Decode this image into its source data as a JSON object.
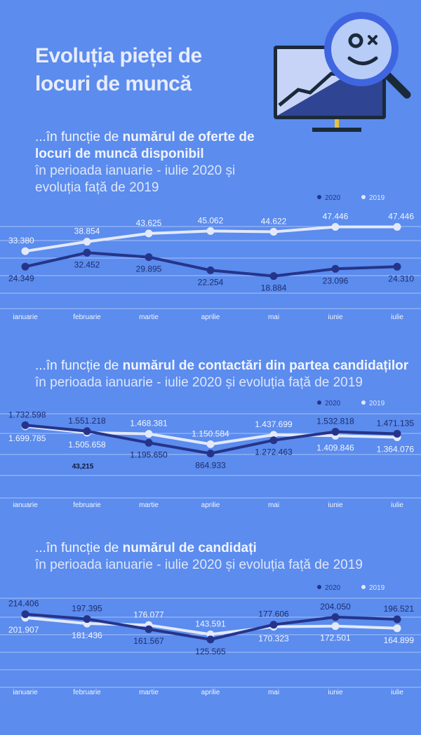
{
  "title": {
    "line1": "Evoluția pieței de",
    "line2": "locuri de muncă"
  },
  "colors": {
    "background": "#5b8cee",
    "series2020": "#25348a",
    "series2019": "#e3e9fb",
    "gridline": "#a9c2f6"
  },
  "illustration": {
    "icon": "magnifier-monitor-growth-icon"
  },
  "sections": [
    {
      "heading": {
        "prefix": "...în funcție de ",
        "bold1": "numărul de oferte de",
        "bold2": "locuri de muncă disponibil",
        "line3": "în perioada ianuarie - iulie 2020 și",
        "line4": "evoluția față de 2019"
      }
    },
    {
      "heading": {
        "prefix": "...în funcție de ",
        "bold1": "numărul de contactări din partea candidaților",
        "line2": "în perioada ianuarie - iulie 2020 și evoluția față de 2019"
      }
    },
    {
      "heading": {
        "prefix": "...în funcție de ",
        "bold1": "numărul de candidați",
        "line2": "în perioada ianuarie - iulie 2020 și evoluția față de 2019"
      }
    }
  ],
  "chart_data": [
    {
      "type": "line",
      "title": "numărul de oferte de locuri de muncă disponibil",
      "categories": [
        "ianuarie",
        "februarie",
        "martie",
        "aprilie",
        "mai",
        "iunie",
        "iulie"
      ],
      "series": [
        {
          "name": "2020",
          "values": [
            24349,
            32452,
            29895,
            22254,
            18884,
            23096,
            24310
          ],
          "labels": [
            "24.349",
            "32.452",
            "29.895",
            "22.254",
            "18.884",
            "23.096",
            "24.310"
          ]
        },
        {
          "name": "2019",
          "values": [
            33380,
            38854,
            43625,
            45062,
            44622,
            47446,
            47446
          ],
          "labels": [
            "33.380",
            "38.854",
            "43.625",
            "45.062",
            "44.622",
            "47.446",
            "47.446"
          ]
        }
      ],
      "ylim": [
        0,
        55000
      ],
      "legend": "top-right"
    },
    {
      "type": "line",
      "title": "numărul de contactări din partea candidaților",
      "categories": [
        "ianuarie",
        "februarie",
        "martie",
        "aprilie",
        "mai",
        "iunie",
        "iulie"
      ],
      "series": [
        {
          "name": "2020",
          "values": [
            1732598,
            1551218,
            1195650,
            864933,
            1272463,
            1532818,
            1471135
          ],
          "labels": [
            "1.732.598",
            "1.551.218",
            "1.195.650",
            "864.933",
            "1.272.463",
            "1.532.818",
            "1.471.135"
          ]
        },
        {
          "name": "2019",
          "values": [
            1699785,
            1505658,
            1468381,
            1150584,
            1437699,
            1409846,
            1364076
          ],
          "labels": [
            "1.699.785",
            "1.505.658",
            "1.468.381",
            "1.150.584",
            "1.437.699",
            "1.409.846",
            "1.364.076"
          ]
        }
      ],
      "extra_annotation": "43,215",
      "ylim": [
        -500000,
        2300000
      ],
      "legend": "top-right"
    },
    {
      "type": "line",
      "title": "numărul de candidați",
      "categories": [
        "ianuarie",
        "februarie",
        "martie",
        "aprilie",
        "mai",
        "iunie",
        "iulie"
      ],
      "series": [
        {
          "name": "2020",
          "values": [
            214406,
            197395,
            161567,
            125565,
            177606,
            204050,
            196521
          ],
          "labels": [
            "214.406",
            "197.395",
            "161.567",
            "125.565",
            "177.606",
            "204.050",
            "196.521"
          ]
        },
        {
          "name": "2019",
          "values": [
            201907,
            181436,
            176077,
            143591,
            170323,
            172501,
            164899
          ],
          "labels": [
            "201.907",
            "181.436",
            "176.077",
            "143.591",
            "170.323",
            "172.501",
            "164.899"
          ]
        }
      ],
      "ylim": [
        -30000,
        290000
      ],
      "legend": "top-right"
    }
  ]
}
